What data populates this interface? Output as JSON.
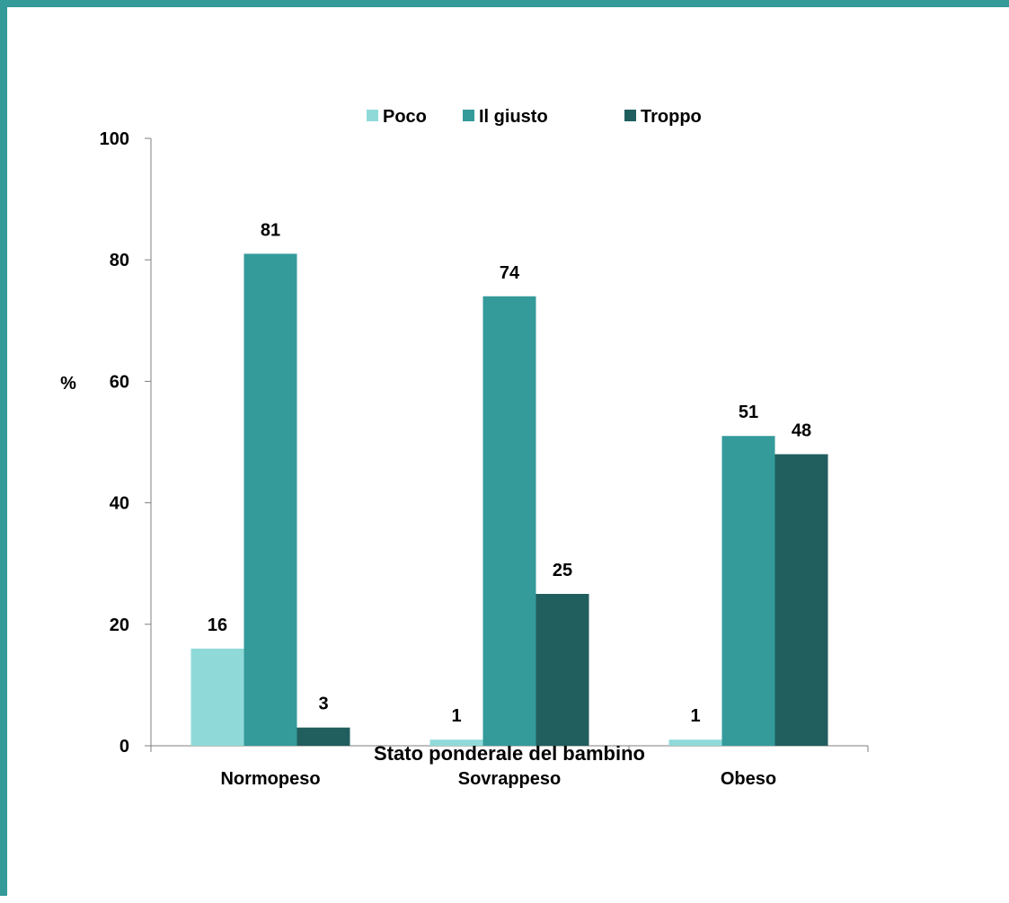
{
  "chart_data": {
    "type": "bar",
    "title": "",
    "xlabel": "Stato ponderale  del bambino",
    "ylabel": "%",
    "categories": [
      "Normopeso",
      "Sovrappeso",
      "Obeso"
    ],
    "series": [
      {
        "name": "Poco",
        "values": [
          16,
          1,
          1
        ]
      },
      {
        "name": "Il giusto",
        "values": [
          81,
          74,
          51
        ]
      },
      {
        "name": "Troppo",
        "values": [
          3,
          25,
          48
        ]
      }
    ],
    "ylim": [
      0,
      100
    ],
    "yticks": [
      "0",
      "20",
      "40",
      "60",
      "80",
      "100"
    ],
    "grid": false,
    "legend_position": "top-center",
    "colors": [
      "#8fdad8",
      "#349a9a",
      "#215e5e"
    ]
  }
}
